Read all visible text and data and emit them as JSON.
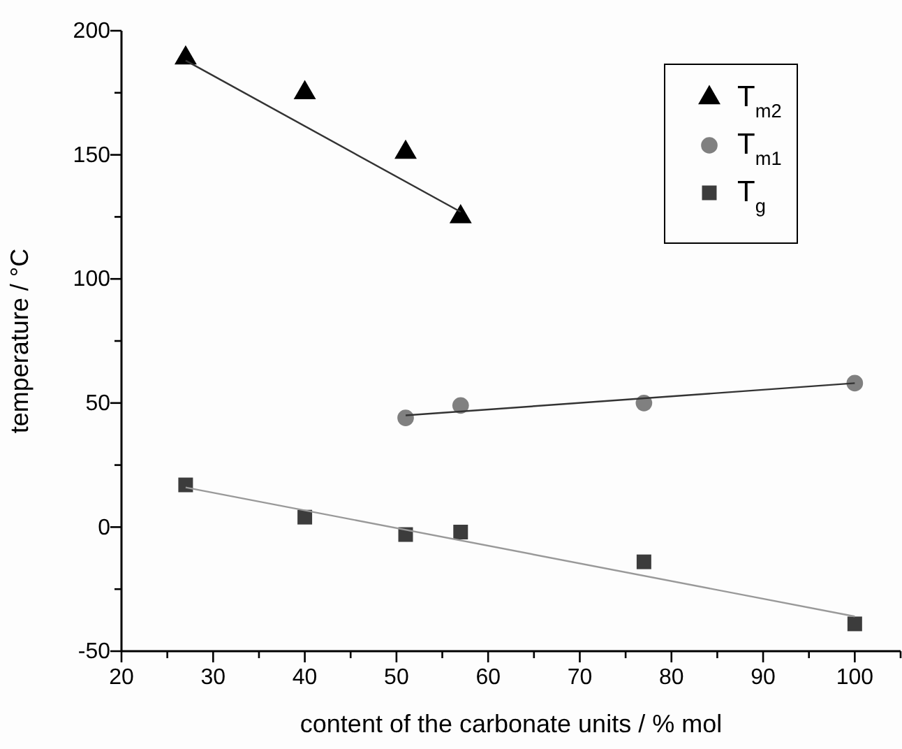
{
  "chart_data": {
    "type": "scatter",
    "xlabel": "content of the carbonate units / % mol",
    "ylabel": "temperature / °C",
    "xlim": [
      20,
      105
    ],
    "xticks": [
      20,
      {
        "value": 25,
        "label": null
      },
      30,
      {
        "value": 35,
        "label": null
      },
      40,
      {
        "value": 45,
        "label": null
      },
      50,
      {
        "value": 55,
        "label": null
      },
      60,
      {
        "value": 65,
        "label": null
      },
      70,
      {
        "value": 75,
        "label": null
      },
      80,
      {
        "value": 85,
        "label": null
      },
      90,
      {
        "value": 95,
        "label": null
      },
      100,
      {
        "value": 105,
        "label": null
      }
    ],
    "ylim": [
      -50,
      200
    ],
    "yticks": [
      -50,
      {
        "value": -25,
        "label": null
      },
      0,
      {
        "value": 25,
        "label": null
      },
      50,
      {
        "value": 75,
        "label": null
      },
      100,
      {
        "value": 125,
        "label": null
      },
      150,
      {
        "value": 175,
        "label": null
      },
      200
    ],
    "grid": false,
    "legend": "top right",
    "series": [
      {
        "name": "T$_{m2}$",
        "marker": "triangle",
        "color": "#000000",
        "x": [
          27,
          40,
          51,
          57
        ],
        "values": [
          189,
          175,
          151,
          125
        ]
      },
      {
        "name": "T$_{m1}$",
        "marker": "circle",
        "color": "#808080",
        "x": [
          51,
          57,
          77,
          100
        ],
        "values": [
          44,
          49,
          50,
          58
        ]
      },
      {
        "name": "T$_{g}$",
        "marker": "square",
        "color": "#3c3c3c",
        "x": [
          27,
          40,
          51,
          57,
          77,
          100
        ],
        "values": [
          17,
          4,
          -3,
          -2,
          -14,
          -39
        ]
      },
      {
        "type": "line",
        "marker": "none",
        "color": "#333333",
        "x": [
          27,
          57
        ],
        "values": [
          188,
          127
        ]
      },
      {
        "type": "line",
        "marker": "none",
        "color": "#333333",
        "x": [
          51,
          100
        ],
        "values": [
          45,
          58
        ]
      },
      {
        "type": "line",
        "marker": "none",
        "color": "#999999",
        "x": [
          27,
          100
        ],
        "values": [
          16,
          -36
        ]
      }
    ]
  }
}
